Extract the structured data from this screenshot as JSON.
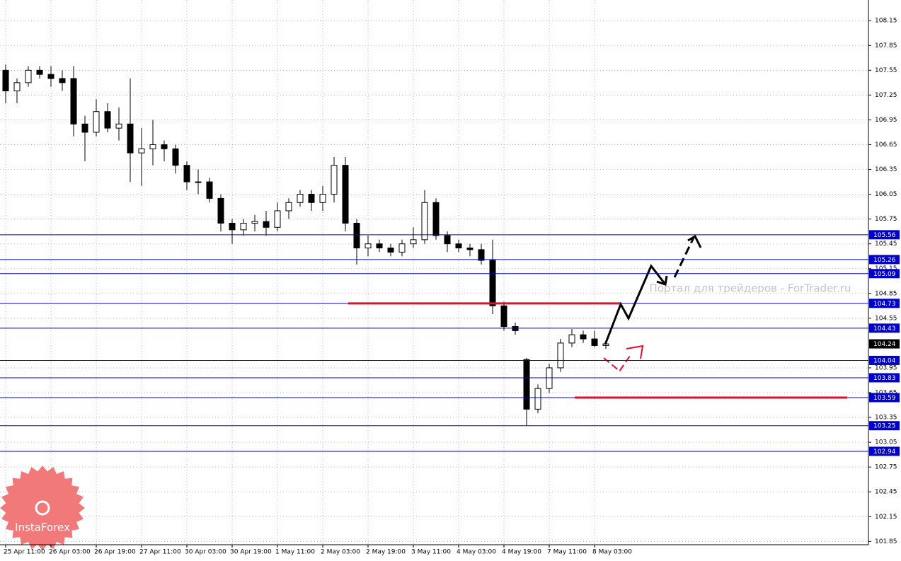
{
  "chart_data": {
    "type": "candlestick",
    "watermark": "Портал для трейдеров - ForTrader.ru",
    "logo": "InstaForex",
    "categories": [
      "25 Apr 11:00",
      null,
      null,
      null,
      "26 Apr 03:00",
      null,
      null,
      null,
      "26 Apr 19:00",
      null,
      null,
      null,
      "27 Apr 11:00",
      null,
      null,
      null,
      "30 Apr 03:00",
      null,
      null,
      null,
      "30 Apr 19:00",
      null,
      null,
      null,
      "1 May 11:00",
      null,
      null,
      null,
      "2 May 03:00",
      null,
      null,
      null,
      "2 May 19:00",
      null,
      null,
      null,
      "3 May 11:00",
      null,
      null,
      null,
      "4 May 03:00",
      null,
      null,
      null,
      "4 May 19:00",
      null,
      null,
      null,
      "7 May 11:00",
      null,
      null,
      null,
      "8 May 03:00",
      null
    ],
    "open": [
      107.55,
      107.3,
      107.4,
      107.55,
      107.5,
      107.45,
      107.45,
      106.9,
      106.8,
      107.05,
      106.85,
      106.9,
      106.55,
      106.6,
      106.65,
      106.6,
      106.4,
      106.2,
      106.2,
      106.0,
      105.7,
      105.62,
      105.7,
      105.72,
      105.65,
      105.85,
      105.95,
      106.05,
      105.95,
      106.05,
      106.4,
      105.7,
      105.4,
      105.45,
      105.4,
      105.35,
      105.45,
      105.5,
      105.95,
      105.55,
      105.45,
      105.4,
      105.38,
      105.25,
      104.7,
      104.45,
      104.05,
      103.45,
      103.7,
      103.95,
      104.25,
      104.35,
      104.3,
      104.22
    ],
    "high": [
      107.62,
      107.45,
      107.6,
      107.6,
      107.6,
      107.55,
      107.6,
      107.0,
      107.2,
      107.15,
      107.1,
      107.45,
      106.85,
      106.95,
      106.7,
      106.65,
      106.45,
      106.35,
      106.25,
      106.05,
      105.75,
      105.75,
      105.8,
      105.85,
      105.95,
      106.0,
      106.1,
      106.1,
      106.15,
      106.5,
      106.5,
      105.75,
      105.55,
      105.5,
      105.45,
      105.5,
      105.65,
      106.1,
      106.0,
      105.6,
      105.5,
      105.45,
      105.45,
      105.5,
      104.75,
      104.5,
      104.07,
      103.75,
      104.0,
      104.3,
      104.42,
      104.4,
      104.4,
      104.28
    ],
    "low": [
      107.15,
      107.15,
      107.35,
      107.45,
      107.35,
      107.3,
      106.75,
      106.45,
      106.75,
      106.8,
      106.7,
      106.2,
      106.15,
      106.4,
      106.45,
      106.3,
      106.1,
      106.05,
      105.95,
      105.6,
      105.45,
      105.55,
      105.6,
      105.55,
      105.6,
      105.75,
      105.9,
      105.85,
      105.85,
      105.95,
      105.6,
      105.2,
      105.3,
      105.35,
      105.3,
      105.3,
      105.4,
      105.45,
      105.5,
      105.35,
      105.35,
      105.3,
      105.2,
      104.6,
      104.4,
      104.35,
      103.25,
      103.4,
      103.65,
      103.9,
      104.2,
      104.25,
      104.2,
      104.18
    ],
    "close": [
      107.3,
      107.4,
      107.55,
      107.5,
      107.45,
      107.4,
      106.9,
      106.8,
      107.05,
      106.85,
      106.9,
      106.55,
      106.6,
      106.65,
      106.6,
      106.4,
      106.2,
      106.2,
      106.0,
      105.7,
      105.62,
      105.7,
      105.72,
      105.65,
      105.85,
      105.95,
      106.05,
      105.95,
      106.05,
      106.4,
      105.7,
      105.4,
      105.45,
      105.4,
      105.35,
      105.45,
      105.5,
      105.95,
      105.55,
      105.45,
      105.4,
      105.38,
      105.25,
      104.7,
      104.45,
      104.4,
      103.45,
      103.7,
      103.95,
      104.25,
      104.35,
      104.3,
      104.22,
      104.24
    ],
    "color": "#000000",
    "levels": [
      105.56,
      105.26,
      105.09,
      104.73,
      104.43,
      104.04,
      103.83,
      103.59,
      103.25,
      102.94
    ],
    "level_color": "#0000c8",
    "red_levels": [
      104.73,
      103.59
    ],
    "red_color": "#e0102a",
    "last": 104.24,
    "ylim": [
      101.81,
      108.4
    ],
    "yticks": [
      108.15,
      107.85,
      107.55,
      107.25,
      106.95,
      106.65,
      106.35,
      106.05,
      105.75,
      105.45,
      105.15,
      104.85,
      104.55,
      103.95,
      103.65,
      103.35,
      103.05,
      102.75,
      102.45,
      102.15,
      101.85
    ],
    "grid": true
  }
}
